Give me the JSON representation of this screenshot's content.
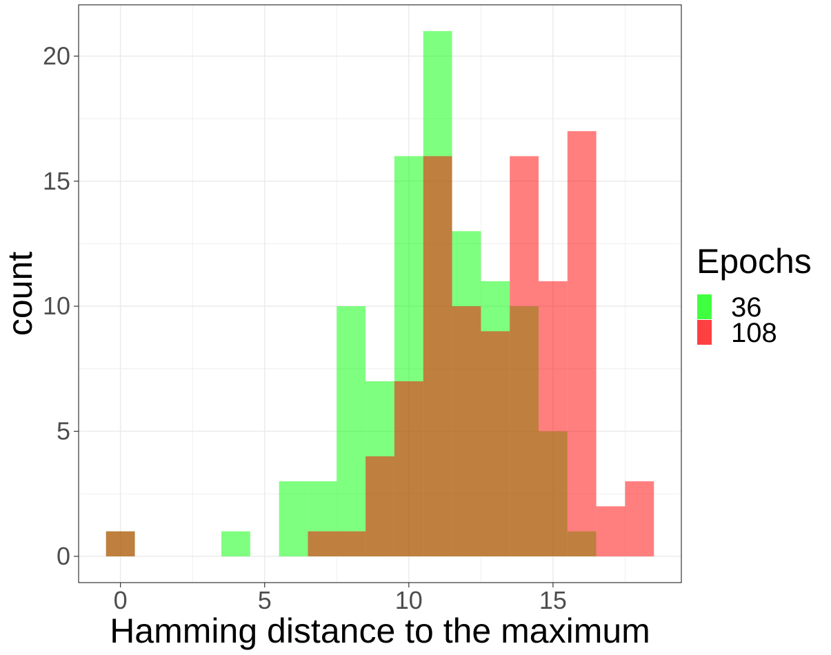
{
  "chart_data": {
    "type": "bar",
    "subtype": "overlapping histogram",
    "xlabel": "Hamming distance to the maximum",
    "ylabel": "count",
    "xlim": [
      -1.45,
      19.45
    ],
    "ylim": [
      -1.05,
      22.05
    ],
    "x_ticks": [
      0,
      5,
      10,
      15
    ],
    "x_tick_labels": [
      "0",
      "5",
      "10",
      "15"
    ],
    "y_ticks": [
      0,
      5,
      10,
      15,
      20
    ],
    "y_tick_labels": [
      "0",
      "5",
      "10",
      "15",
      "20"
    ],
    "x_minor_grid": [
      2.5,
      7.5,
      12.5,
      17.5
    ],
    "y_minor_grid": [
      2.5,
      7.5,
      12.5,
      17.5
    ],
    "bin_width": 1,
    "grid": true,
    "legend": {
      "title": "Epochs",
      "position": "right"
    },
    "series": [
      {
        "name": "36",
        "color": "#00FF00",
        "opacity": 0.5,
        "x": [
          0,
          4,
          6,
          7,
          8,
          9,
          10,
          11,
          12,
          13,
          14,
          15,
          16
        ],
        "values": [
          1,
          1,
          3,
          3,
          10,
          7,
          16,
          21,
          13,
          11,
          10,
          5,
          1
        ]
      },
      {
        "name": "108",
        "color": "#FF0000",
        "opacity": 0.5,
        "x": [
          0,
          7,
          8,
          9,
          10,
          11,
          12,
          13,
          14,
          15,
          16,
          17,
          18
        ],
        "values": [
          1,
          1,
          1,
          4,
          7,
          16,
          10,
          9,
          16,
          11,
          17,
          2,
          3
        ]
      }
    ]
  }
}
